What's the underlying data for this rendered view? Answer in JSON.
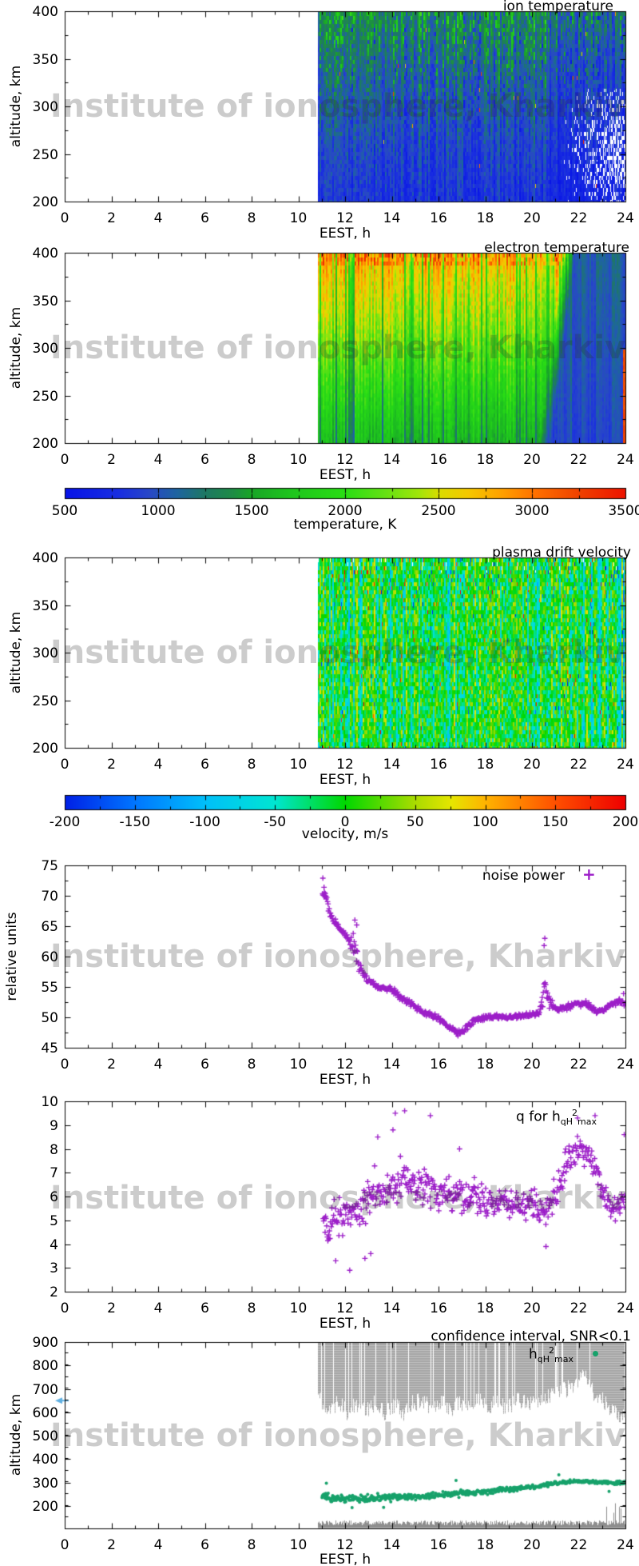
{
  "watermark": {
    "text": "Institute of ionosphere, Kharkiv"
  },
  "shared": {
    "xlabel": "EEST, h",
    "xmin": 0,
    "xmax": 24,
    "xticks": [
      0,
      2,
      4,
      6,
      8,
      10,
      12,
      14,
      16,
      18,
      20,
      22,
      24
    ],
    "data_start_hour": 10.83
  },
  "colors": {
    "scatter_marker": "#9c1ec8",
    "hmax_dots": "#17a26b",
    "ci_bars": "#a6a6a6",
    "ci_strip": "#8e8e8e",
    "arrow": "#5fb0e2",
    "frame": "#000000"
  },
  "palettes": {
    "temperature": [
      [
        0,
        "#0713e8"
      ],
      [
        0.1,
        "#1a2fe0"
      ],
      [
        0.15,
        "#2847c8"
      ],
      [
        0.2,
        "#1e64a0"
      ],
      [
        0.25,
        "#1e7864"
      ],
      [
        0.3,
        "#1e8c46"
      ],
      [
        0.33,
        "#19a428"
      ],
      [
        0.4,
        "#1ec41e"
      ],
      [
        0.5,
        "#2ade14"
      ],
      [
        0.57,
        "#64e114"
      ],
      [
        0.63,
        "#a0e60a"
      ],
      [
        0.67,
        "#dcdc00"
      ],
      [
        0.72,
        "#f5c800"
      ],
      [
        0.78,
        "#ffa000"
      ],
      [
        0.84,
        "#ff7000"
      ],
      [
        0.91,
        "#f04600"
      ],
      [
        1,
        "#ee1400"
      ]
    ],
    "velocity": [
      [
        0,
        "#0020e6"
      ],
      [
        0.125,
        "#0076ff"
      ],
      [
        0.25,
        "#00bffa"
      ],
      [
        0.375,
        "#00e6d2"
      ],
      [
        0.5,
        "#00d800"
      ],
      [
        0.625,
        "#aadc00"
      ],
      [
        0.69,
        "#e6e600"
      ],
      [
        0.75,
        "#ffb400"
      ],
      [
        0.875,
        "#ff5000"
      ],
      [
        1,
        "#ee0000"
      ]
    ]
  },
  "chart_data": [
    {
      "id": "ion_temperature",
      "type": "heatmap",
      "title": "ion temperature",
      "ylabel": "altitude, km",
      "xlim": [
        0,
        24
      ],
      "ylim": [
        200,
        400
      ],
      "yticks": [
        200,
        250,
        300,
        350,
        400
      ],
      "value_range": [
        500,
        3500
      ],
      "palette": "temperature",
      "data_start_hour": 10.83,
      "profile": {
        "base_K_at_200km": 800,
        "base_K_at_400km": 1250,
        "pattern": "mostly blue 800-1100 K below 280 km; green vertical streaks 1300-1800 K above 250 km densest 11-18 h; dimmer blue after 21 h with white missing-data gaps 210-320 km growing toward 24 h"
      }
    },
    {
      "id": "electron_temperature",
      "type": "heatmap",
      "title": "electron temperature",
      "ylabel": "altitude, km",
      "xlim": [
        0,
        24
      ],
      "ylim": [
        200,
        400
      ],
      "yticks": [
        200,
        250,
        300,
        350,
        400
      ],
      "value_range": [
        500,
        3500
      ],
      "palette": "temperature",
      "data_start_hour": 10.83,
      "profile": {
        "day_K_at_200km": 1650,
        "day_K_at_400km": 2850,
        "night_K": 1000,
        "transition_hour_200km": 20.3,
        "transition_hour_400km": 21.3,
        "pattern": "daytime yellow-orange aloft, green below, dark-green vertical streaks; blue night side after ~20.5-21.3 h; thin red column near 23.9 h below 300 km"
      }
    },
    {
      "id": "temperature_colorbar",
      "type": "colorbar",
      "label": "temperature, K",
      "range": [
        500,
        3500
      ],
      "ticks": [
        500,
        1000,
        1500,
        2000,
        2500,
        3000,
        3500
      ],
      "palette": "temperature"
    },
    {
      "id": "plasma_drift_velocity",
      "type": "heatmap",
      "title": "plasma drift velocity",
      "ylabel": "altitude, km",
      "xlim": [
        0,
        24
      ],
      "ylim": [
        200,
        400
      ],
      "yticks": [
        200,
        250,
        300,
        350,
        400
      ],
      "value_range": [
        -200,
        200
      ],
      "palette": "velocity",
      "data_start_hour": 10.83,
      "profile": {
        "typical_range_ms": [
          -80,
          40
        ],
        "pattern": "green/cyan mottled columns near 0 to -50 m/s with thin yellow (+60..+100), rare red (+150..+200) and dark blue (-150..-200) streaks; more negative (blue) after ~22.7 h"
      }
    },
    {
      "id": "velocity_colorbar",
      "type": "colorbar",
      "label": "velocity, m/s",
      "range": [
        -200,
        200
      ],
      "ticks": [
        -200,
        -150,
        -100,
        -50,
        0,
        50,
        100,
        150,
        200
      ],
      "palette": "velocity"
    },
    {
      "id": "noise_power",
      "type": "scatter",
      "title": "noise power",
      "ylabel": "relative units",
      "xlim": [
        0,
        24
      ],
      "ylim": [
        45,
        75
      ],
      "yticks": [
        45,
        50,
        55,
        60,
        65,
        70,
        75
      ],
      "marker": "plus",
      "points_per_hour": 42,
      "start_hour": 11.02,
      "end_hour": 24,
      "trend": [
        [
          11.05,
          70.8,
          1.2
        ],
        [
          11.2,
          69.6,
          0.9
        ],
        [
          11.35,
          67.0,
          0.8
        ],
        [
          11.55,
          65.8,
          0.7
        ],
        [
          11.75,
          64.8,
          0.7
        ],
        [
          11.95,
          64.0,
          0.7
        ],
        [
          12.15,
          63.0,
          0.9
        ],
        [
          12.3,
          61.8,
          2.4
        ],
        [
          12.45,
          61.2,
          2.8
        ],
        [
          12.6,
          58.6,
          1.4
        ],
        [
          12.8,
          57.0,
          0.9
        ],
        [
          13.0,
          56.0,
          0.7
        ],
        [
          13.3,
          55.2,
          0.6
        ],
        [
          13.7,
          54.8,
          0.6
        ],
        [
          14.0,
          54.5,
          0.7
        ],
        [
          14.3,
          53.5,
          0.8
        ],
        [
          14.6,
          52.8,
          0.7
        ],
        [
          15.0,
          51.7,
          0.6
        ],
        [
          15.4,
          50.8,
          0.6
        ],
        [
          15.8,
          50.2,
          0.6
        ],
        [
          16.2,
          49.3,
          0.6
        ],
        [
          16.5,
          48.4,
          0.7
        ],
        [
          16.8,
          47.6,
          0.8
        ],
        [
          17.05,
          47.4,
          0.8
        ],
        [
          17.3,
          48.7,
          0.8
        ],
        [
          17.6,
          49.6,
          0.6
        ],
        [
          18.0,
          49.9,
          0.6
        ],
        [
          18.5,
          50.1,
          0.5
        ],
        [
          19.0,
          50.0,
          0.5
        ],
        [
          19.5,
          50.3,
          0.5
        ],
        [
          20.0,
          50.5,
          0.6
        ],
        [
          20.3,
          50.8,
          0.7
        ],
        [
          20.48,
          53.5,
          3.2
        ],
        [
          20.6,
          55.5,
          3.6
        ],
        [
          20.72,
          52.5,
          1.4
        ],
        [
          21.0,
          51.3,
          0.6
        ],
        [
          21.4,
          51.6,
          0.6
        ],
        [
          21.8,
          52.2,
          0.6
        ],
        [
          22.2,
          52.3,
          0.6
        ],
        [
          22.5,
          51.9,
          0.6
        ],
        [
          22.8,
          50.9,
          0.5
        ],
        [
          23.1,
          51.4,
          0.5
        ],
        [
          23.4,
          52.2,
          0.6
        ],
        [
          23.7,
          52.6,
          0.6
        ],
        [
          24.0,
          52.4,
          0.7
        ]
      ],
      "outliers": [
        [
          11.05,
          72.9
        ],
        [
          11.1,
          71.4
        ],
        [
          12.42,
          66.0
        ],
        [
          12.5,
          65.2
        ],
        [
          20.55,
          63.0
        ],
        [
          20.52,
          61.8
        ],
        [
          23.92,
          53.9
        ]
      ]
    },
    {
      "id": "q_factor",
      "type": "scatter",
      "title_parts": {
        "pre": "q for h",
        "sub1": "qH",
        "sup": "2",
        "sub2": "max"
      },
      "ylabel": "",
      "xlim": [
        0,
        24
      ],
      "ylim": [
        2,
        10
      ],
      "yticks": [
        2,
        3,
        4,
        5,
        6,
        7,
        8,
        9,
        10
      ],
      "marker": "plus",
      "points_per_hour": 40,
      "start_hour": 11.05,
      "end_hour": 23.98,
      "trend": [
        [
          11.1,
          4.8,
          0.8
        ],
        [
          11.3,
          4.4,
          0.8
        ],
        [
          11.5,
          5.2,
          0.9
        ],
        [
          11.8,
          5.0,
          0.9
        ],
        [
          12.1,
          5.3,
          1.0
        ],
        [
          12.4,
          5.6,
          1.0
        ],
        [
          12.7,
          5.2,
          1.0
        ],
        [
          13.0,
          5.9,
          1.1
        ],
        [
          13.3,
          6.2,
          1.1
        ],
        [
          13.6,
          6.0,
          1.0
        ],
        [
          13.9,
          6.4,
          1.1
        ],
        [
          14.2,
          6.6,
          1.2
        ],
        [
          14.5,
          6.8,
          1.2
        ],
        [
          14.8,
          6.4,
          1.1
        ],
        [
          15.1,
          6.6,
          1.1
        ],
        [
          15.4,
          6.3,
          1.1
        ],
        [
          15.7,
          6.5,
          1.2
        ],
        [
          16.0,
          6.2,
          1.0
        ],
        [
          16.3,
          6.4,
          1.0
        ],
        [
          16.6,
          6.0,
          1.0
        ],
        [
          16.9,
          6.2,
          1.0
        ],
        [
          17.2,
          5.9,
          0.9
        ],
        [
          17.5,
          6.1,
          0.9
        ],
        [
          17.8,
          5.8,
          0.9
        ],
        [
          18.1,
          5.9,
          0.8
        ],
        [
          18.4,
          5.7,
          0.8
        ],
        [
          18.7,
          5.8,
          0.8
        ],
        [
          19.0,
          5.6,
          0.8
        ],
        [
          19.3,
          5.8,
          0.8
        ],
        [
          19.6,
          5.6,
          0.8
        ],
        [
          19.9,
          5.7,
          0.8
        ],
        [
          20.2,
          5.5,
          0.8
        ],
        [
          20.5,
          5.3,
          0.8
        ],
        [
          20.8,
          5.6,
          0.9
        ],
        [
          21.1,
          6.4,
          0.9
        ],
        [
          21.4,
          7.2,
          0.9
        ],
        [
          21.7,
          7.8,
          0.8
        ],
        [
          22.0,
          8.0,
          0.7
        ],
        [
          22.3,
          7.8,
          0.8
        ],
        [
          22.6,
          7.4,
          0.8
        ],
        [
          22.9,
          6.6,
          0.8
        ],
        [
          23.2,
          5.8,
          0.7
        ],
        [
          23.5,
          5.4,
          0.6
        ],
        [
          23.8,
          5.6,
          0.7
        ],
        [
          24.0,
          6.0,
          0.8
        ]
      ],
      "outliers": [
        [
          12.2,
          2.9
        ],
        [
          11.6,
          3.3
        ],
        [
          12.85,
          3.4
        ],
        [
          13.1,
          3.6
        ],
        [
          20.6,
          3.9
        ],
        [
          13.4,
          8.5
        ],
        [
          14.05,
          8.8
        ],
        [
          14.15,
          9.5
        ],
        [
          14.55,
          9.6
        ],
        [
          15.65,
          9.4
        ],
        [
          16.9,
          8.0
        ],
        [
          21.95,
          9.3
        ],
        [
          22.7,
          9.4
        ],
        [
          23.95,
          8.6
        ]
      ]
    },
    {
      "id": "confidence_interval",
      "type": "composite",
      "title": "confidence interval, SNR<0.1",
      "ylabel": "altitude, km",
      "legend_parts": {
        "pre": "h",
        "sub1": "qH",
        "sup": "2",
        "sub2": "max"
      },
      "xlim": [
        0,
        24
      ],
      "ylim": [
        104,
        900
      ],
      "yticks": [
        200,
        300,
        400,
        500,
        600,
        700,
        800,
        900
      ],
      "ci_top_km": 900,
      "start_hour": 10.85,
      "ci_bottom_km": [
        [
          10.9,
          655
        ],
        [
          11.3,
          615
        ],
        [
          11.7,
          640
        ],
        [
          12.1,
          600
        ],
        [
          12.5,
          635
        ],
        [
          12.9,
          610
        ],
        [
          13.3,
          645
        ],
        [
          13.7,
          595
        ],
        [
          14.1,
          630
        ],
        [
          14.5,
          600
        ],
        [
          14.9,
          640
        ],
        [
          15.3,
          650
        ],
        [
          15.7,
          615
        ],
        [
          16.1,
          645
        ],
        [
          16.5,
          605
        ],
        [
          16.9,
          640
        ],
        [
          17.3,
          615
        ],
        [
          17.7,
          650
        ],
        [
          18.1,
          620
        ],
        [
          18.5,
          655
        ],
        [
          18.9,
          615
        ],
        [
          19.3,
          645
        ],
        [
          19.7,
          655
        ],
        [
          20.1,
          630
        ],
        [
          20.5,
          660
        ],
        [
          20.9,
          670
        ],
        [
          21.3,
          690
        ],
        [
          21.7,
          715
        ],
        [
          22.0,
          745
        ],
        [
          22.2,
          760
        ],
        [
          22.5,
          700
        ],
        [
          22.8,
          665
        ],
        [
          23.1,
          640
        ],
        [
          23.4,
          605
        ],
        [
          23.7,
          580
        ],
        [
          23.85,
          605
        ],
        [
          24,
          565
        ]
      ],
      "hmax_points_per_hour": 48,
      "hmax_trend": [
        [
          11,
          242,
          26
        ],
        [
          11.5,
          235,
          24
        ],
        [
          12,
          233,
          22
        ],
        [
          12.5,
          230,
          22
        ],
        [
          13,
          232,
          20
        ],
        [
          13.5,
          235,
          20
        ],
        [
          14,
          237,
          20
        ],
        [
          14.5,
          239,
          18
        ],
        [
          15,
          240,
          18
        ],
        [
          15.5,
          243,
          17
        ],
        [
          16,
          247,
          16
        ],
        [
          16.5,
          251,
          16
        ],
        [
          17,
          254,
          15
        ],
        [
          17.5,
          258,
          15
        ],
        [
          18,
          262,
          14
        ],
        [
          18.5,
          266,
          14
        ],
        [
          19,
          270,
          13
        ],
        [
          19.5,
          275,
          13
        ],
        [
          20,
          281,
          12
        ],
        [
          20.5,
          289,
          12
        ],
        [
          21,
          297,
          11
        ],
        [
          21.5,
          303,
          10
        ],
        [
          22,
          305,
          9
        ],
        [
          22.5,
          303,
          9
        ],
        [
          23,
          301,
          9
        ],
        [
          23.5,
          299,
          10
        ],
        [
          24,
          299,
          11
        ]
      ],
      "hmax_outliers": [
        [
          21.15,
          333
        ],
        [
          16.75,
          309
        ],
        [
          12.3,
          193
        ],
        [
          13.65,
          194
        ],
        [
          11.2,
          297
        ],
        [
          23.3,
          262
        ]
      ],
      "bottom_strip": {
        "top_km_min": 118,
        "top_km_max": 138,
        "spike_hours": [
          23.15,
          23.8
        ],
        "spike_top_km": 215
      },
      "arrow_marker": {
        "alt_km": 650,
        "direction": "left"
      }
    }
  ]
}
